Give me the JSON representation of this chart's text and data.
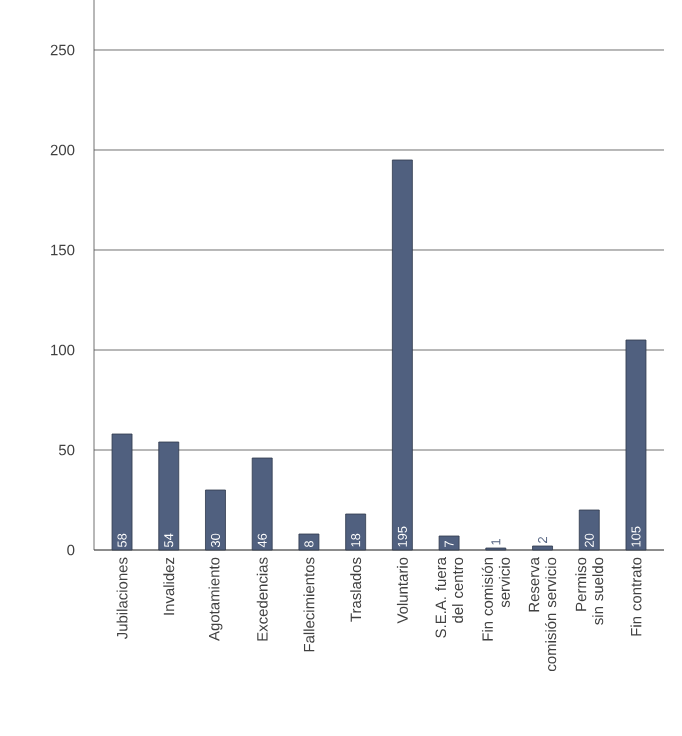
{
  "chart_data": {
    "type": "bar",
    "categories": [
      "Jubilaciones",
      "Invalidez",
      "Agotamiento",
      "Excedencias",
      "Fallecimientos",
      "Traslados",
      "Voluntario",
      "S.E.A. fuera del centro",
      "Fin comisión servicio",
      "Reserva comisión servicio",
      "Permiso sin sueldo",
      "Fin contrato"
    ],
    "values": [
      58,
      54,
      30,
      46,
      8,
      18,
      195,
      7,
      1,
      2,
      20,
      105
    ],
    "value_labels": [
      "58",
      "54",
      "30",
      "46",
      "8",
      "18",
      "195",
      "7",
      "1",
      "2",
      "20",
      "105"
    ],
    "color": "#50607f",
    "ylim": [
      0,
      275
    ],
    "yticks": [
      0,
      50,
      100,
      150,
      200,
      250
    ],
    "grid": "y"
  }
}
